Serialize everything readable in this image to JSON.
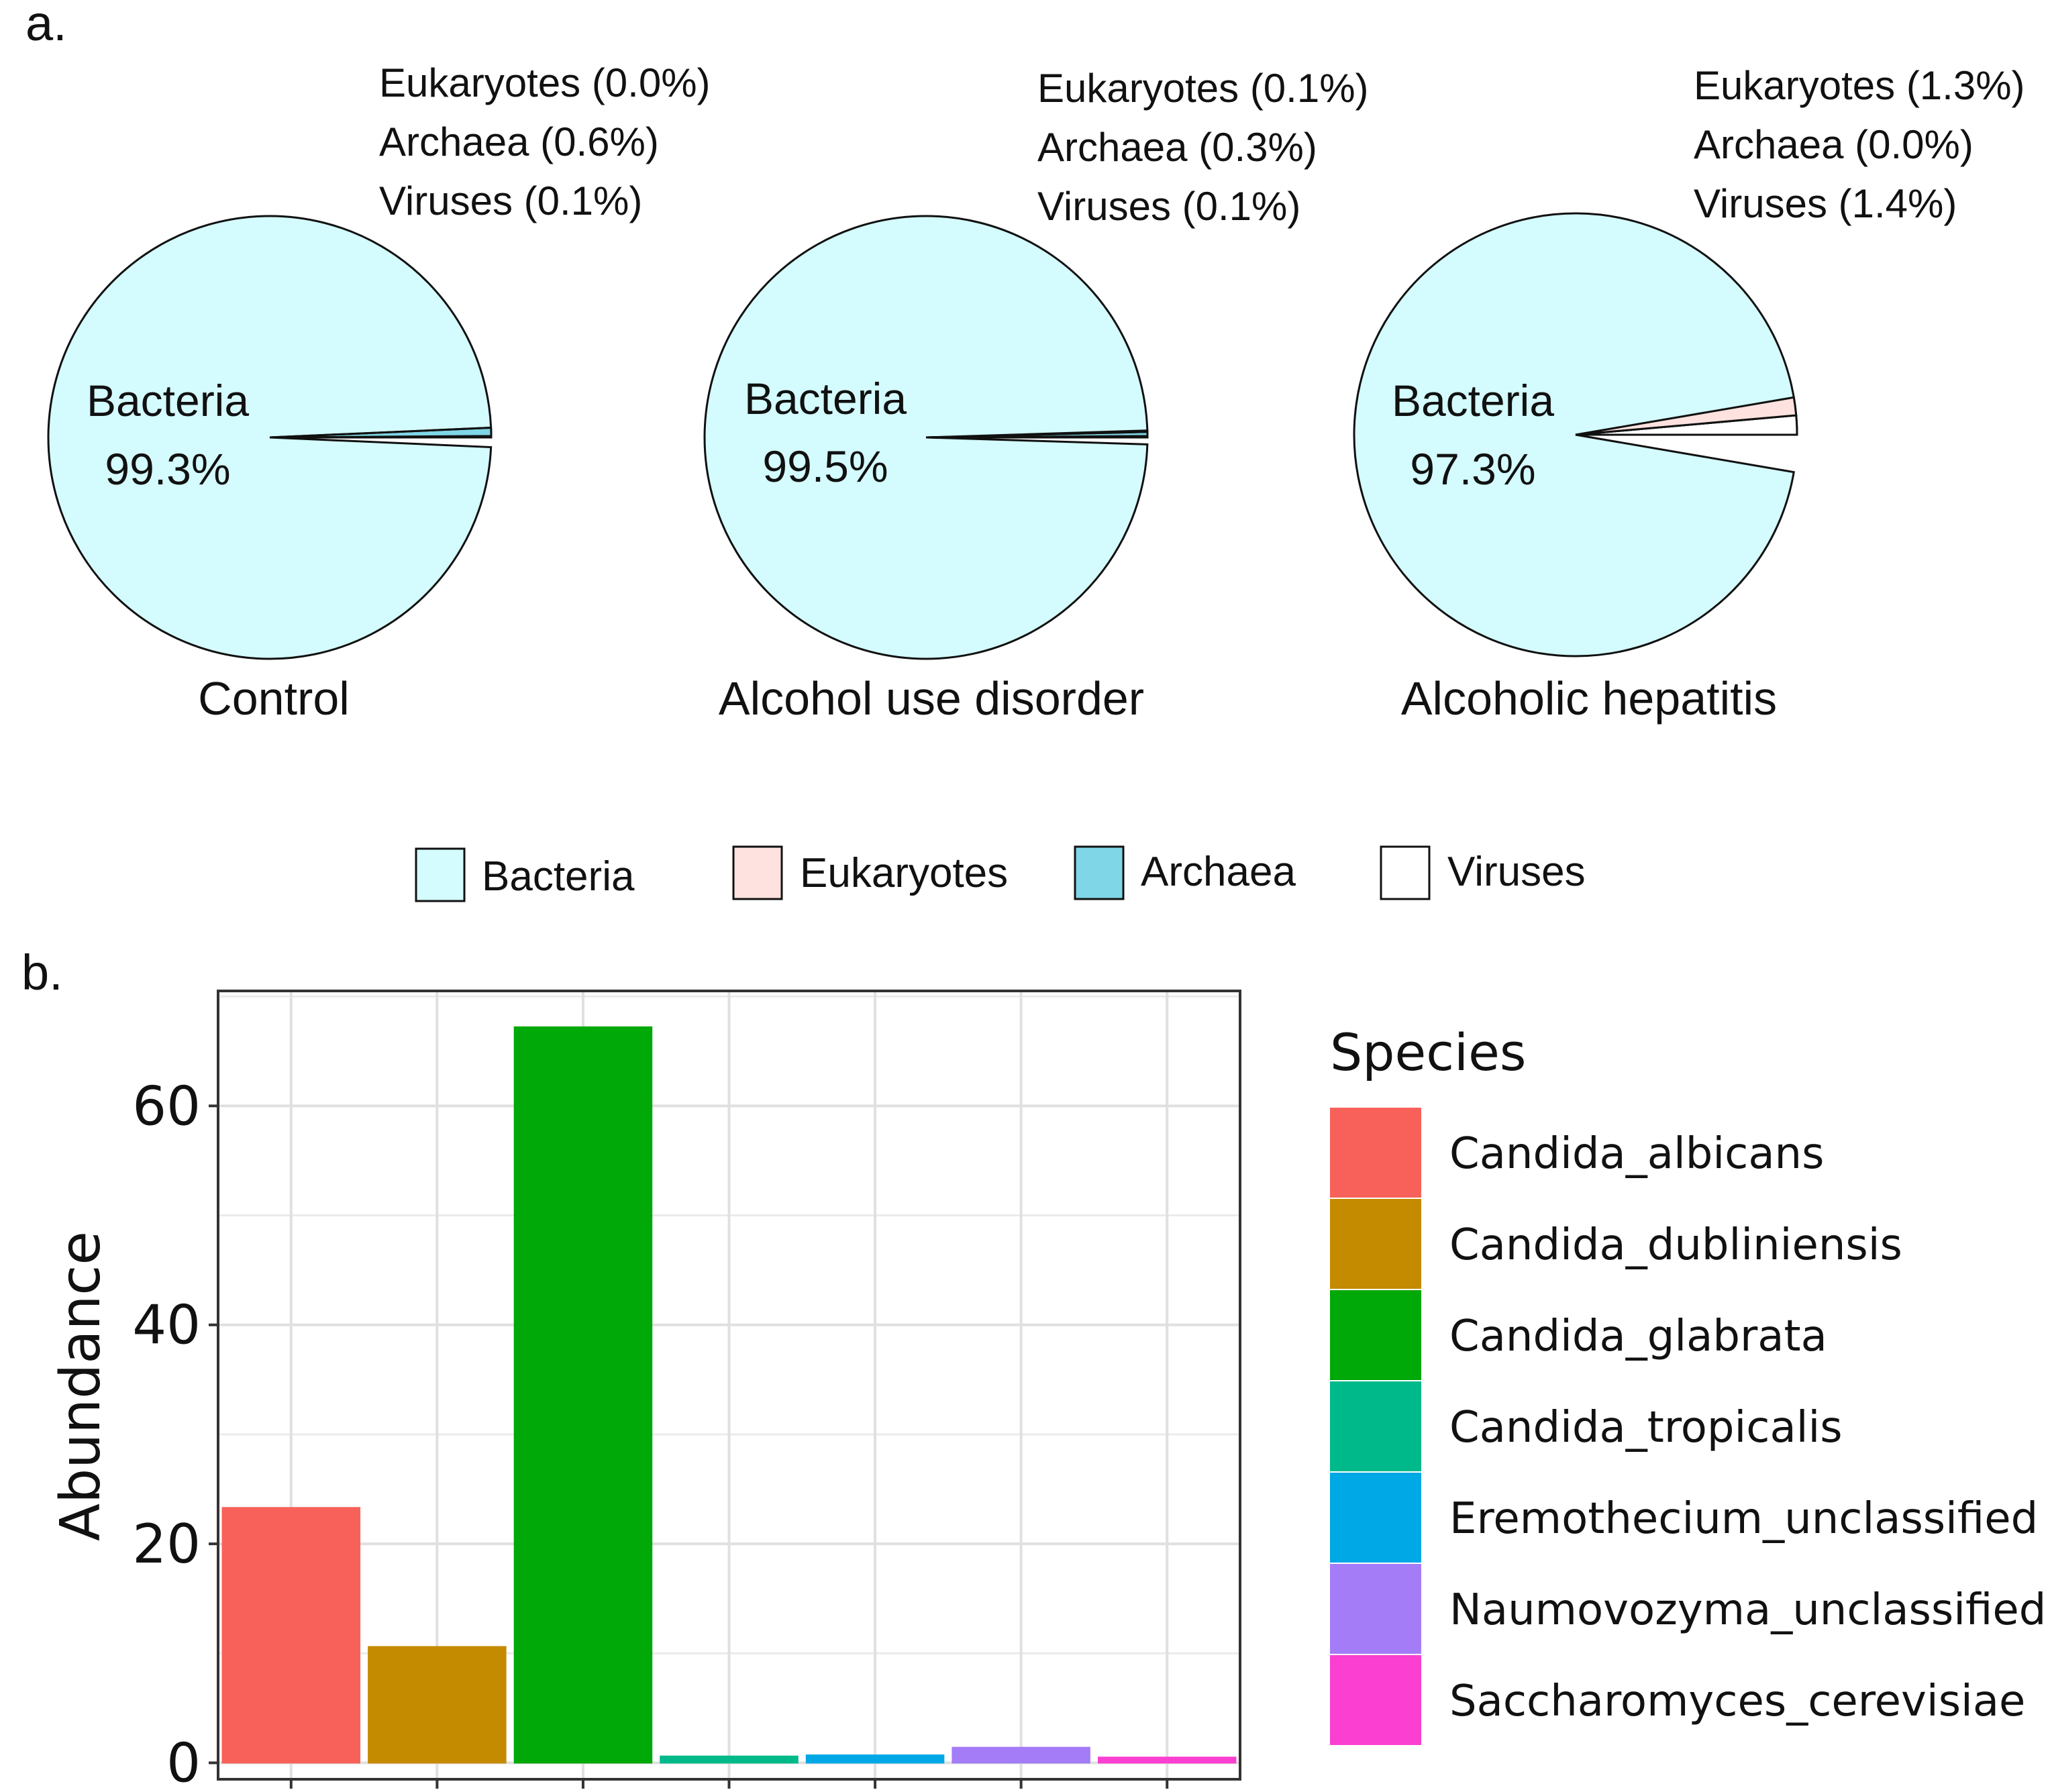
{
  "panel_a": {
    "label": "a."
  },
  "panel_b": {
    "label": "b."
  },
  "colors": {
    "Bacteria": "#d4fbfd",
    "Eukaryotes": "#fde2df",
    "Archaea": "#7fd6e6",
    "Viruses": "#ffffff"
  },
  "chart_data": [
    {
      "type": "pie",
      "title": "Control",
      "categories": [
        "Bacteria",
        "Eukaryotes",
        "Archaea",
        "Viruses"
      ],
      "values": [
        99.3,
        0.0,
        0.6,
        0.1
      ],
      "center_label": {
        "name": "Bacteria",
        "value": "99.3%"
      },
      "annotations": [
        "Eukaryotes (0.0%)",
        "Archaea (0.6%)",
        "Viruses (0.1%)"
      ]
    },
    {
      "type": "pie",
      "title": "Alcohol use disorder",
      "categories": [
        "Bacteria",
        "Eukaryotes",
        "Archaea",
        "Viruses"
      ],
      "values": [
        99.5,
        0.1,
        0.3,
        0.1
      ],
      "center_label": {
        "name": "Bacteria",
        "value": "99.5%"
      },
      "annotations": [
        "Eukaryotes (0.1%)",
        "Archaea (0.3%)",
        "Viruses (0.1%)"
      ]
    },
    {
      "type": "pie",
      "title": "Alcoholic hepatitis",
      "categories": [
        "Bacteria",
        "Eukaryotes",
        "Archaea",
        "Viruses"
      ],
      "values": [
        97.3,
        1.3,
        0.0,
        1.4
      ],
      "center_label": {
        "name": "Bacteria",
        "value": "97.3%"
      },
      "annotations": [
        "Eukaryotes (1.3%)",
        "Archaea (0.0%)",
        "Viruses (1.4%)"
      ]
    },
    {
      "type": "bar",
      "categories": [
        "Candida_albicans",
        "Candida_dubliniensis",
        "Candida_glabrata",
        "Candida_tropicalis",
        "Eremothecium_unclassified",
        "Naumovozyma_unclassified",
        "Saccharomyces_cerevisiae"
      ],
      "values": [
        23.3,
        10.6,
        67.2,
        0.6,
        0.7,
        1.4,
        0.5
      ],
      "colors": [
        "#f8615a",
        "#c48a00",
        "#00a808",
        "#00b98b",
        "#00a8e5",
        "#a57cf8",
        "#fb3fd0"
      ],
      "xlabel": "",
      "ylabel": "Abundance",
      "ylim": [
        -1.5,
        70.5
      ],
      "yticks": [
        0,
        20,
        40,
        60
      ],
      "legend_title": "Species",
      "legend_position": "right",
      "grid": true
    }
  ],
  "legend_a": {
    "items": [
      {
        "name": "Bacteria",
        "color": "#d4fbfd"
      },
      {
        "name": "Eukaryotes",
        "color": "#fde2df"
      },
      {
        "name": "Archaea",
        "color": "#7fd6e6"
      },
      {
        "name": "Viruses",
        "color": "#ffffff"
      }
    ]
  }
}
